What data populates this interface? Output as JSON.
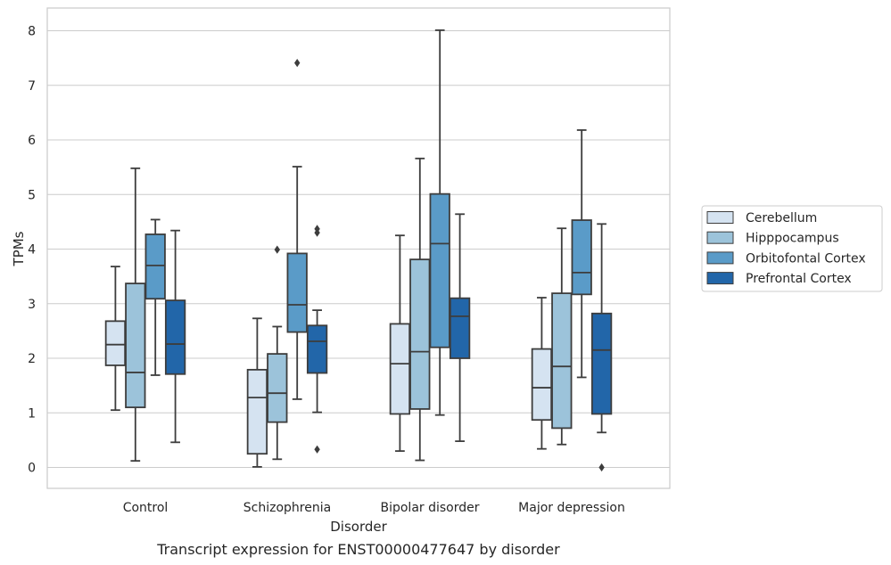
{
  "chart_data": {
    "type": "box",
    "title": "Transcript expression for ENST00000477647 by disorder",
    "xlabel": "Disorder",
    "ylabel": "TPMs",
    "ylim": [
      -0.38,
      8.42
    ],
    "yticks": [
      "0",
      "1",
      "2",
      "3",
      "4",
      "5",
      "6",
      "7",
      "8"
    ],
    "grid": true,
    "legend_position": "right",
    "categories": [
      "Control",
      "Schizophrenia",
      "Bipolar disorder",
      "Major depression"
    ],
    "series": [
      {
        "name": "Cerebellum",
        "color": "#d5e3f1",
        "boxes": [
          {
            "whislo": 1.05,
            "q1": 1.87,
            "median": 2.25,
            "q3": 2.68,
            "whishi": 3.68,
            "fliers": []
          },
          {
            "whislo": 0.01,
            "q1": 0.25,
            "median": 1.28,
            "q3": 1.79,
            "whishi": 2.73,
            "fliers": []
          },
          {
            "whislo": 0.3,
            "q1": 0.98,
            "median": 1.9,
            "q3": 2.63,
            "whishi": 4.25,
            "fliers": []
          },
          {
            "whislo": 0.34,
            "q1": 0.87,
            "median": 1.46,
            "q3": 2.17,
            "whishi": 3.11,
            "fliers": []
          }
        ]
      },
      {
        "name": "Hipppocampus",
        "color": "#9cc3da",
        "boxes": [
          {
            "whislo": 0.12,
            "q1": 1.1,
            "median": 1.74,
            "q3": 3.37,
            "whishi": 5.48,
            "fliers": []
          },
          {
            "whislo": 0.15,
            "q1": 0.83,
            "median": 1.36,
            "q3": 2.08,
            "whishi": 2.58,
            "fliers": [
              3.99
            ]
          },
          {
            "whislo": 0.13,
            "q1": 1.07,
            "median": 2.12,
            "q3": 3.81,
            "whishi": 5.66,
            "fliers": []
          },
          {
            "whislo": 0.42,
            "q1": 0.72,
            "median": 1.85,
            "q3": 3.19,
            "whishi": 4.38,
            "fliers": []
          }
        ]
      },
      {
        "name": "Orbitofontal Cortex",
        "color": "#5a9bc8",
        "boxes": [
          {
            "whislo": 1.69,
            "q1": 3.09,
            "median": 3.7,
            "q3": 4.27,
            "whishi": 4.54,
            "fliers": []
          },
          {
            "whislo": 1.25,
            "q1": 2.48,
            "median": 2.98,
            "q3": 3.92,
            "whishi": 5.51,
            "fliers": [
              7.41
            ]
          },
          {
            "whislo": 0.96,
            "q1": 2.2,
            "median": 4.1,
            "q3": 5.01,
            "whishi": 8.01,
            "fliers": []
          },
          {
            "whislo": 1.65,
            "q1": 3.17,
            "median": 3.57,
            "q3": 4.53,
            "whishi": 6.18,
            "fliers": []
          }
        ]
      },
      {
        "name": "Prefrontal Cortex",
        "color": "#2266a9",
        "boxes": [
          {
            "whislo": 0.46,
            "q1": 1.71,
            "median": 2.26,
            "q3": 3.06,
            "whishi": 4.34,
            "fliers": []
          },
          {
            "whislo": 1.01,
            "q1": 1.73,
            "median": 2.31,
            "q3": 2.6,
            "whishi": 2.88,
            "fliers": [
              0.33,
              4.3,
              4.37
            ]
          },
          {
            "whislo": 0.48,
            "q1": 2.0,
            "median": 2.77,
            "q3": 3.1,
            "whishi": 4.64,
            "fliers": []
          },
          {
            "whislo": 0.64,
            "q1": 0.98,
            "median": 2.15,
            "q3": 2.82,
            "whishi": 4.46,
            "fliers": [
              0.0
            ]
          }
        ]
      }
    ]
  }
}
